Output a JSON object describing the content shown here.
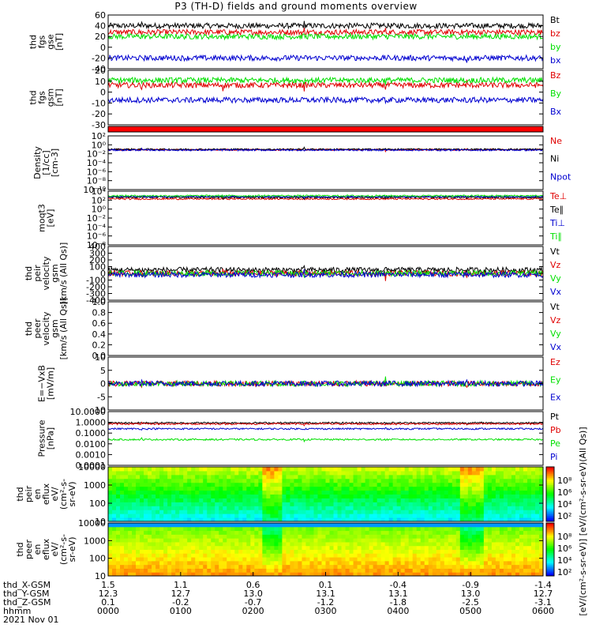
{
  "title": "P3 (TH-D) fields and ground moments overview",
  "colors": {
    "black": "#000000",
    "red": "#e00000",
    "green": "#00e000",
    "blue": "#0000d0"
  },
  "chart_data": [
    {
      "type": "line",
      "name": "fgs",
      "ylabel": [
        "thd",
        "fgs",
        "gse",
        "[nT]"
      ],
      "ylim": [
        -40,
        60
      ],
      "ticks": [
        60,
        40,
        20,
        0,
        -20,
        -40
      ],
      "log": false,
      "series": [
        {
          "name": "Bt",
          "color": "black",
          "level": 40
        },
        {
          "name": "bz",
          "color": "red",
          "level": 28
        },
        {
          "name": "by",
          "color": "green",
          "level": 20
        },
        {
          "name": "bx",
          "color": "blue",
          "level": -20
        }
      ]
    },
    {
      "type": "line",
      "name": "fgs-gsm",
      "ylabel": [
        "thd",
        "fgs",
        "gsm",
        "[nT]"
      ],
      "ylim": [
        -35,
        20
      ],
      "ticks": [
        20,
        10,
        0,
        -10,
        -20,
        -30
      ],
      "log": false,
      "series": [
        {
          "name": "Bz",
          "color": "red",
          "level": 5
        },
        {
          "name": "By",
          "color": "green",
          "level": 10
        },
        {
          "name": "Bx",
          "color": "blue",
          "level": -10
        }
      ]
    },
    {
      "type": "bar",
      "name": "status-bar",
      "values": [
        1
      ]
    },
    {
      "type": "line",
      "name": "density",
      "ylabel": [
        "Density",
        "[1/cc]",
        "[cm-3]"
      ],
      "ylim": [
        -10,
        4
      ],
      "ticks": [
        "10²",
        "10⁰",
        "10⁻²",
        "10⁻⁴",
        "10⁻⁶",
        "10⁻⁸",
        "10⁻¹⁰"
      ],
      "log": true,
      "series": [
        {
          "name": "Ne",
          "color": "red",
          "level": 0.4
        },
        {
          "name": "Ni",
          "color": "black",
          "level": 0.5
        },
        {
          "name": "Npot",
          "color": "blue",
          "level": 0.3
        }
      ]
    },
    {
      "type": "line",
      "name": "temperature",
      "ylabel": [
        "moqt3",
        "[eV]"
      ],
      "ylim": [
        -9,
        5
      ],
      "ticks": [
        "10⁴",
        "10²",
        "10⁰",
        "10⁻²",
        "10⁻⁴",
        "10⁻⁶",
        "10⁻⁸"
      ],
      "log": true,
      "series": [
        {
          "name": "Te⊥",
          "color": "red",
          "level": 3
        },
        {
          "name": "Te∥",
          "color": "black",
          "level": 3.4
        },
        {
          "name": "Ti⊥",
          "color": "blue",
          "level": 3.6
        },
        {
          "name": "Ti∥",
          "color": "green",
          "level": 3.8
        }
      ]
    },
    {
      "type": "line",
      "name": "peir-velocity",
      "ylabel": [
        "thd",
        "peir",
        "velocity",
        "gsm",
        "[km/s (All Qs)]"
      ],
      "ylim": [
        -400,
        400
      ],
      "ticks": [
        400,
        300,
        200,
        100,
        0,
        -100,
        -200,
        -300,
        -400
      ],
      "log": false,
      "series": [
        {
          "name": "Vt",
          "color": "black",
          "level": 50
        },
        {
          "name": "Vz",
          "color": "red",
          "level": 0
        },
        {
          "name": "Vy",
          "color": "green",
          "level": 0
        },
        {
          "name": "Vx",
          "color": "blue",
          "level": -20
        }
      ]
    },
    {
      "type": "line",
      "name": "peer-velocity",
      "ylabel": [
        "thd",
        "peer",
        "velocity",
        "gsm",
        "[km/s (All Qs)]"
      ],
      "ylim": [
        0,
        1
      ],
      "ticks": [
        "1.0",
        "0.8",
        "0.6",
        "0.4",
        "0.2",
        "0.0"
      ],
      "log": false,
      "series": [
        {
          "name": "Vt",
          "color": "black"
        },
        {
          "name": "Vz",
          "color": "red"
        },
        {
          "name": "Vy",
          "color": "green"
        },
        {
          "name": "Vx",
          "color": "blue"
        }
      ]
    },
    {
      "type": "line",
      "name": "efield",
      "ylabel": [
        "E=−VxB",
        "[mV/m]"
      ],
      "ylim": [
        -10,
        10
      ],
      "ticks": [
        10,
        5,
        0,
        -5,
        -10
      ],
      "log": false,
      "series": [
        {
          "name": "Ez",
          "color": "red",
          "level": 0
        },
        {
          "name": "Ey",
          "color": "green",
          "level": 0
        },
        {
          "name": "Ex",
          "color": "blue",
          "level": 0
        }
      ]
    },
    {
      "type": "line",
      "name": "pressure",
      "ylabel": [
        "Pressure",
        "[nPa]"
      ],
      "ylim": [
        -4,
        1
      ],
      "ticks": [
        "10.0000",
        "1.0000",
        "0.1000",
        "0.0100",
        "0.0010",
        "0.0001"
      ],
      "log": true,
      "series": [
        {
          "name": "Pt",
          "color": "black",
          "level": -0.05
        },
        {
          "name": "Pb",
          "color": "red",
          "level": -0.15
        },
        {
          "name": "Pe",
          "color": "green",
          "level": -1.6
        },
        {
          "name": "Pi",
          "color": "blue",
          "level": -0.6
        }
      ]
    },
    {
      "type": "heatmap",
      "name": "peir-eflux",
      "ylabel": [
        "thd",
        "peir",
        "en",
        "eflux",
        "eV/",
        "(cm²-s-",
        "sr-eV)"
      ],
      "ylim": [
        1,
        4.3
      ],
      "ticks": [
        "10000",
        "1000",
        "100",
        "10"
      ],
      "log": true
    },
    {
      "type": "heatmap",
      "name": "peer-eflux",
      "ylabel": [
        "thd",
        "peer",
        "en",
        "eflux",
        "eV/",
        "(cm²-s-",
        "sr-eV)"
      ],
      "ylim": [
        1,
        4.3
      ],
      "ticks": [
        "10000",
        "1000",
        "100",
        "10"
      ],
      "log": true
    }
  ],
  "colorbar": {
    "label": "[eV/(cm²-s-sr-eV)] [eV/(cm²-s-sr-eV)(All Qs)]",
    "ticks_top": [
      "10⁸",
      "10⁶",
      "10⁴",
      "10²"
    ],
    "ticks_bottom": [
      "10⁸",
      "10⁶",
      "10⁴",
      "10²"
    ]
  },
  "xaxis": {
    "rows": [
      {
        "label": "thd_X-GSM",
        "values": [
          "1.5",
          "1.1",
          "0.6",
          "0.1",
          "-0.4",
          "-0.9",
          "-1.4"
        ]
      },
      {
        "label": "thd_Y-GSM",
        "values": [
          "12.3",
          "12.7",
          "13.0",
          "13.1",
          "13.1",
          "13.0",
          "12.7"
        ]
      },
      {
        "label": "thd_Z-GSM",
        "values": [
          "0.1",
          "-0.2",
          "-0.7",
          "-1.2",
          "-1.8",
          "-2.5",
          "-3.1"
        ]
      },
      {
        "label": "hhmm",
        "values": [
          "0000",
          "0100",
          "0200",
          "0300",
          "0400",
          "0500",
          "0600"
        ]
      }
    ],
    "date": "2021 Nov 01"
  }
}
